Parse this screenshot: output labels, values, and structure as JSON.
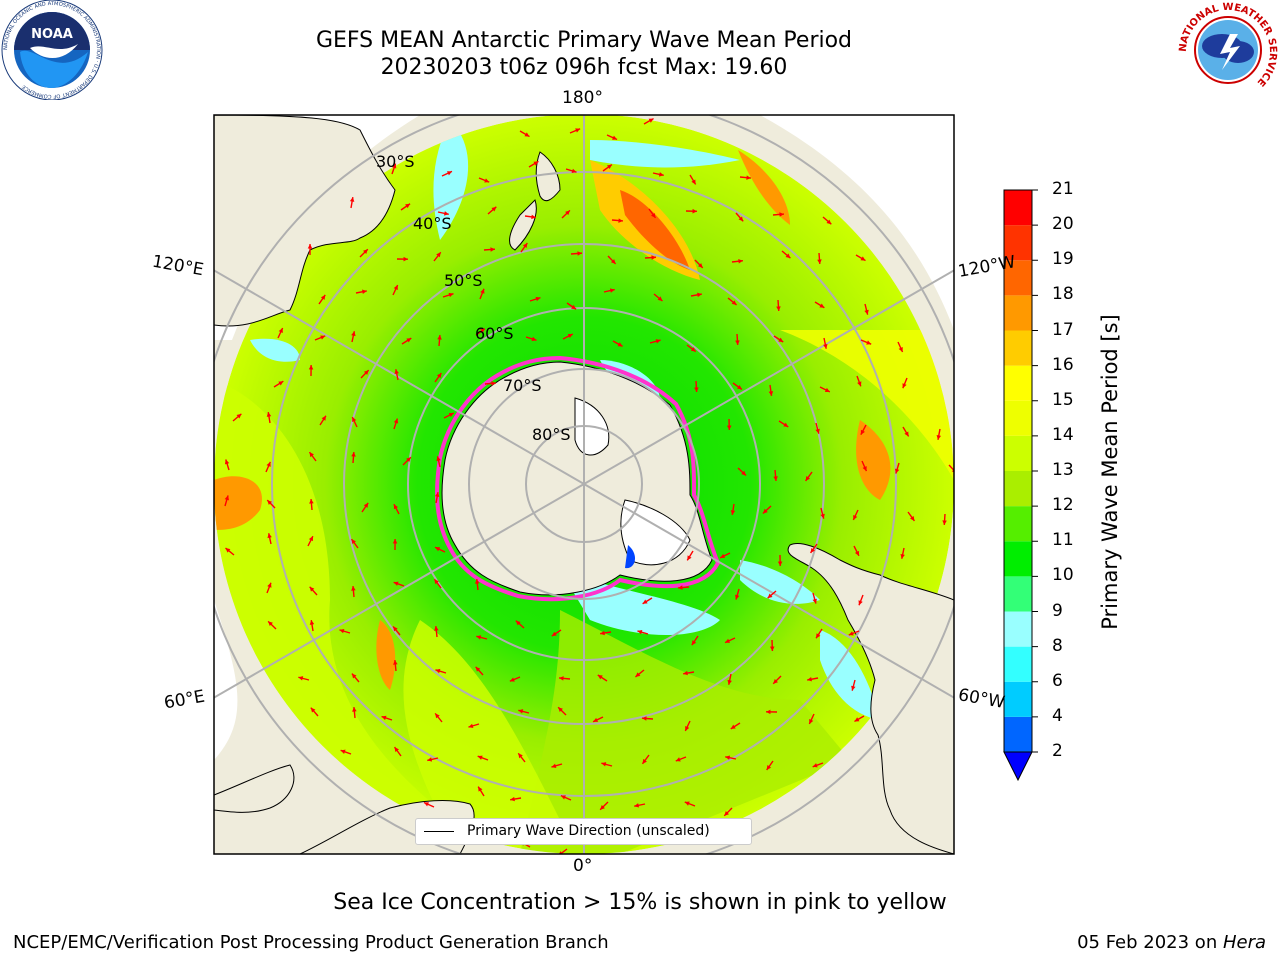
{
  "header": {
    "title_line1": "GEFS MEAN Antarctic Primary Wave Mean Period",
    "title_line2": "20230203 t06z 096h fcst    Max: 19.60"
  },
  "logos": {
    "noaa_text": "NOAA",
    "noaa_ring_text": "NATIONAL OCEANIC AND ATMOSPHERIC ADMINISTRATION · U.S. DEPARTMENT OF COMMERCE",
    "nws_ring_text": "NATIONAL WEATHER SERVICE"
  },
  "map": {
    "longitude_labels": {
      "top": "180°",
      "bottom": "0°",
      "upper_left": "120°E",
      "lower_left": "60°E",
      "upper_right": "120°W",
      "lower_right": "60°W"
    },
    "latitude_labels": [
      "30°S",
      "40°S",
      "50°S",
      "60°S",
      "70°S",
      "80°S"
    ],
    "colors": {
      "land": "#efecdc",
      "arrow": "#ff0000",
      "sea_ice": "#ff33cc",
      "grid": "#b0b0b0"
    }
  },
  "colorbar": {
    "label": "Primary Wave Mean Period [s]",
    "ticks": [
      "2",
      "4",
      "6",
      "8",
      "9",
      "10",
      "11",
      "12",
      "13",
      "14",
      "15",
      "16",
      "17",
      "18",
      "19",
      "20",
      "21"
    ],
    "colors": [
      "#0066ff",
      "#00ccff",
      "#33ffff",
      "#99ffff",
      "#33ff77",
      "#00ee00",
      "#55ee00",
      "#aaee00",
      "#ccff00",
      "#eeff00",
      "#ffff00",
      "#ffcc00",
      "#ff9900",
      "#ff6600",
      "#ff3300",
      "#ff0000"
    ],
    "under_color": "#0000ff"
  },
  "legend": {
    "label": "Primary Wave Direction (unscaled)"
  },
  "caption": "Sea Ice Concentration > 15% is shown in pink to yellow",
  "footer": {
    "left": "NCEP/EMC/Verification Post Processing Product Generation Branch",
    "right_date": "05 Feb 2023 on ",
    "right_host": "Hera"
  }
}
